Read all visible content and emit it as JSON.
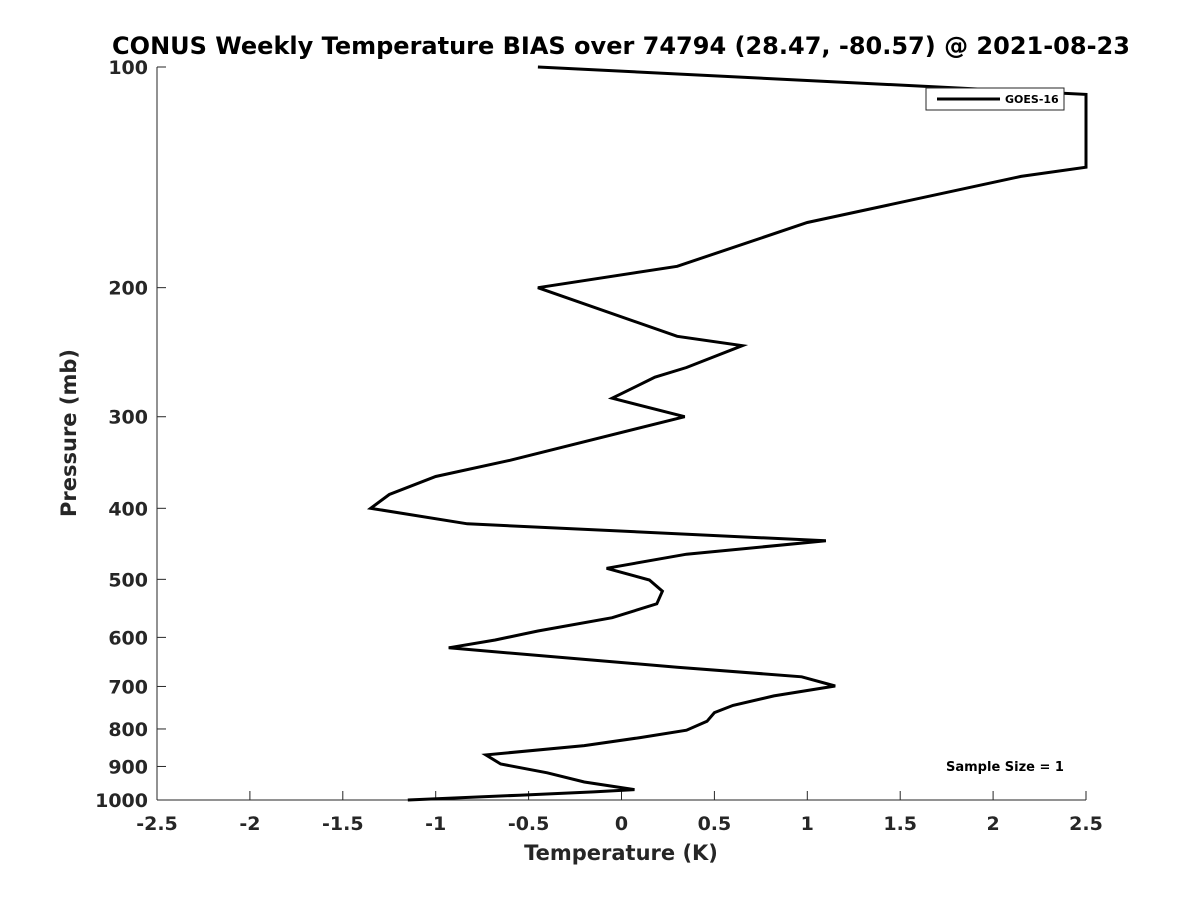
{
  "chart_data": {
    "type": "line",
    "title": "CONUS Weekly Temperature BIAS over 74794 (28.47, -80.57) @ 2021-08-23",
    "xlabel": "Temperature (K)",
    "ylabel": "Pressure (mb)",
    "xlim": [
      -2.5,
      2.5
    ],
    "ylim": [
      100,
      1000
    ],
    "y_scale": "log",
    "y_reversed": true,
    "grid": false,
    "x_ticks": [
      -2.5,
      -2,
      -1.5,
      -1,
      -0.5,
      0,
      0.5,
      1,
      1.5,
      2,
      2.5
    ],
    "x_tick_labels": [
      "-2.5",
      "-2",
      "-1.5",
      "-1",
      "-0.5",
      "0",
      "0.5",
      "1",
      "1.5",
      "2",
      "2.5"
    ],
    "y_ticks": [
      100,
      200,
      300,
      400,
      500,
      600,
      700,
      800,
      900,
      1000
    ],
    "y_tick_labels": [
      "100",
      "200",
      "300",
      "400",
      "500",
      "600",
      "700",
      "800",
      "900",
      "1000"
    ],
    "legend": {
      "position": "top-right",
      "entries": [
        "GOES-16"
      ]
    },
    "annotations": [
      "Sample Size = 1"
    ],
    "series": [
      {
        "name": "GOES-16",
        "color": "#000000",
        "points": [
          [
            -0.45,
            100
          ],
          [
            2.5,
            109
          ],
          [
            2.5,
            137
          ],
          [
            2.15,
            141
          ],
          [
            1.0,
            163
          ],
          [
            0.3,
            187
          ],
          [
            -0.45,
            200
          ],
          [
            0.3,
            233
          ],
          [
            0.65,
            240
          ],
          [
            0.35,
            257
          ],
          [
            0.18,
            265
          ],
          [
            -0.05,
            283
          ],
          [
            0.34,
            300
          ],
          [
            -0.6,
            344
          ],
          [
            -1.0,
            362
          ],
          [
            -1.25,
            383
          ],
          [
            -1.35,
            400
          ],
          [
            -0.83,
            420
          ],
          [
            1.1,
            443
          ],
          [
            0.35,
            462
          ],
          [
            -0.08,
            483
          ],
          [
            0.15,
            501
          ],
          [
            0.22,
            519
          ],
          [
            0.19,
            540
          ],
          [
            -0.05,
            564
          ],
          [
            -0.45,
            588
          ],
          [
            -0.68,
            605
          ],
          [
            -0.93,
            620
          ],
          [
            -0.2,
            643
          ],
          [
            0.3,
            659
          ],
          [
            0.97,
            679
          ],
          [
            1.15,
            699
          ],
          [
            0.82,
            721
          ],
          [
            0.6,
            743
          ],
          [
            0.5,
            760
          ],
          [
            0.46,
            781
          ],
          [
            0.35,
            803
          ],
          [
            0.1,
            822
          ],
          [
            -0.2,
            843
          ],
          [
            -0.73,
            868
          ],
          [
            -0.65,
            893
          ],
          [
            -0.4,
            918
          ],
          [
            -0.2,
            945
          ],
          [
            0.07,
            968
          ],
          [
            -0.15,
            975
          ],
          [
            -0.55,
            985
          ],
          [
            -1.15,
            1000
          ]
        ]
      }
    ]
  }
}
